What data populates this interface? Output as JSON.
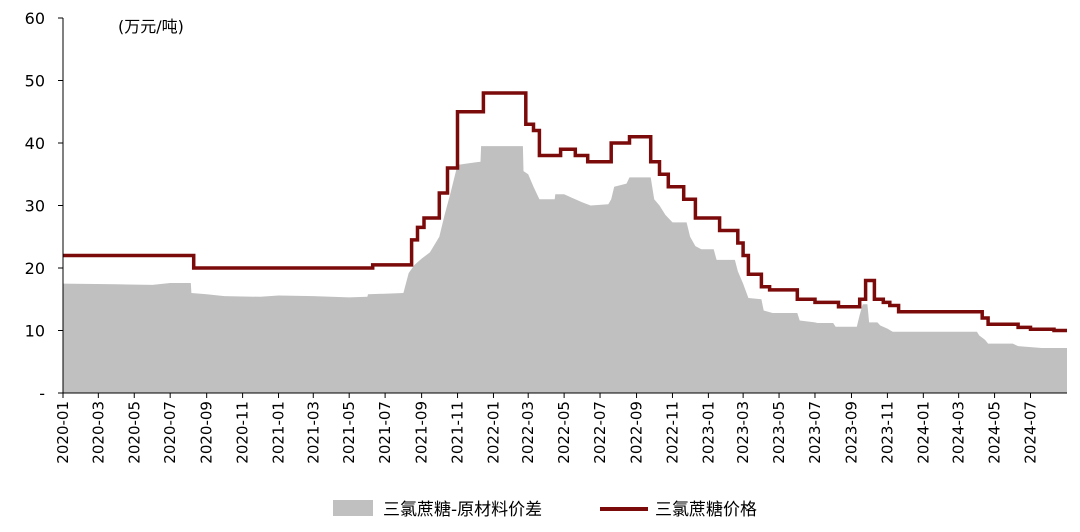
{
  "chart_data": {
    "type": "area",
    "unit_label": "(万元/吨)",
    "y_ticks": [
      "-",
      "10",
      "20",
      "30",
      "40",
      "50",
      "60"
    ],
    "ylim": [
      0,
      60
    ],
    "x_ticks": [
      "2020-01",
      "2020-03",
      "2020-05",
      "2020-07",
      "2020-09",
      "2020-11",
      "2021-01",
      "2021-03",
      "2021-05",
      "2021-07",
      "2021-09",
      "2021-11",
      "2022-01",
      "2022-03",
      "2022-05",
      "2022-07",
      "2022-09",
      "2022-11",
      "2023-01",
      "2023-03",
      "2023-05",
      "2023-07",
      "2023-09",
      "2023-11",
      "2024-01",
      "2024-03",
      "2024-05",
      "2024-07"
    ],
    "xlim": [
      "2020-01-01",
      "2024-09-01"
    ],
    "grid": false,
    "legend_position": "bottom",
    "colors": {
      "spread": "#c0c0c0",
      "price": "#7b0a0a"
    },
    "series": [
      {
        "name": "三氯蔗糖-原材料价差",
        "kind": "area",
        "points": [
          [
            "2020-01-01",
            17.5
          ],
          [
            "2020-04-01",
            17.4
          ],
          [
            "2020-06-01",
            17.3
          ],
          [
            "2020-07-01",
            17.6
          ],
          [
            "2020-08-05",
            17.6
          ],
          [
            "2020-08-06",
            16.0
          ],
          [
            "2020-09-01",
            15.8
          ],
          [
            "2020-10-01",
            15.5
          ],
          [
            "2020-12-01",
            15.4
          ],
          [
            "2021-01-01",
            15.6
          ],
          [
            "2021-03-01",
            15.5
          ],
          [
            "2021-05-01",
            15.3
          ],
          [
            "2021-06-01",
            15.4
          ],
          [
            "2021-06-02",
            15.8
          ],
          [
            "2021-08-01",
            16.0
          ],
          [
            "2021-08-10",
            19.2
          ],
          [
            "2021-08-20",
            20.5
          ],
          [
            "2021-09-01",
            21.5
          ],
          [
            "2021-09-15",
            22.5
          ],
          [
            "2021-10-01",
            25.0
          ],
          [
            "2021-10-10",
            28.5
          ],
          [
            "2021-10-20",
            32.0
          ],
          [
            "2021-11-01",
            36.5
          ],
          [
            "2021-12-01",
            36.9
          ],
          [
            "2021-12-10",
            37.0
          ],
          [
            "2021-12-11",
            39.5
          ],
          [
            "2022-02-20",
            39.5
          ],
          [
            "2022-02-21",
            35.5
          ],
          [
            "2022-03-01",
            35.0
          ],
          [
            "2022-03-10",
            33.0
          ],
          [
            "2022-03-20",
            31.0
          ],
          [
            "2022-04-15",
            31.0
          ],
          [
            "2022-04-16",
            31.8
          ],
          [
            "2022-05-01",
            31.8
          ],
          [
            "2022-05-15",
            31.2
          ],
          [
            "2022-06-01",
            30.5
          ],
          [
            "2022-06-15",
            30.0
          ],
          [
            "2022-07-15",
            30.2
          ],
          [
            "2022-07-20",
            31.0
          ],
          [
            "2022-07-25",
            33.0
          ],
          [
            "2022-08-15",
            33.5
          ],
          [
            "2022-08-20",
            34.5
          ],
          [
            "2022-09-25",
            34.5
          ],
          [
            "2022-10-01",
            31.0
          ],
          [
            "2022-10-10",
            30.0
          ],
          [
            "2022-10-20",
            28.5
          ],
          [
            "2022-11-01",
            27.3
          ],
          [
            "2022-11-25",
            27.3
          ],
          [
            "2022-12-01",
            25.0
          ],
          [
            "2022-12-10",
            23.5
          ],
          [
            "2022-12-20",
            23.0
          ],
          [
            "2023-01-10",
            23.0
          ],
          [
            "2023-01-15",
            21.3
          ],
          [
            "2023-02-15",
            21.3
          ],
          [
            "2023-02-20",
            19.5
          ],
          [
            "2023-03-01",
            17.5
          ],
          [
            "2023-03-10",
            15.2
          ],
          [
            "2023-04-01",
            15.0
          ],
          [
            "2023-04-05",
            13.2
          ],
          [
            "2023-04-20",
            12.8
          ],
          [
            "2023-06-01",
            12.8
          ],
          [
            "2023-06-05",
            11.6
          ],
          [
            "2023-07-01",
            11.3
          ],
          [
            "2023-07-05",
            11.2
          ],
          [
            "2023-08-01",
            11.2
          ],
          [
            "2023-08-05",
            10.6
          ],
          [
            "2023-09-10",
            10.6
          ],
          [
            "2023-09-15",
            12.5
          ],
          [
            "2023-09-20",
            14.2
          ],
          [
            "2023-09-28",
            14.2
          ],
          [
            "2023-10-01",
            11.3
          ],
          [
            "2023-10-15",
            11.3
          ],
          [
            "2023-10-20",
            10.8
          ],
          [
            "2023-11-01",
            10.3
          ],
          [
            "2023-11-10",
            9.8
          ],
          [
            "2024-04-01",
            9.8
          ],
          [
            "2024-04-05",
            9.2
          ],
          [
            "2024-04-15",
            8.5
          ],
          [
            "2024-04-20",
            7.9
          ],
          [
            "2024-06-01",
            7.9
          ],
          [
            "2024-06-10",
            7.5
          ],
          [
            "2024-07-20",
            7.2
          ],
          [
            "2024-09-01",
            7.2
          ]
        ]
      },
      {
        "name": "三氯蔗糖价格",
        "kind": "step-line",
        "points": [
          [
            "2020-01-01",
            22
          ],
          [
            "2020-08-10",
            20
          ],
          [
            "2021-06-10",
            20.5
          ],
          [
            "2021-08-15",
            24.5
          ],
          [
            "2021-08-25",
            26.5
          ],
          [
            "2021-09-05",
            28
          ],
          [
            "2021-10-01",
            32
          ],
          [
            "2021-10-15",
            36
          ],
          [
            "2021-11-01",
            45
          ],
          [
            "2021-12-15",
            48
          ],
          [
            "2022-02-25",
            43
          ],
          [
            "2022-03-10",
            42
          ],
          [
            "2022-03-20",
            38
          ],
          [
            "2022-04-25",
            39
          ],
          [
            "2022-05-20",
            38
          ],
          [
            "2022-06-10",
            37
          ],
          [
            "2022-07-20",
            40
          ],
          [
            "2022-08-20",
            41
          ],
          [
            "2022-09-25",
            37
          ],
          [
            "2022-10-10",
            35
          ],
          [
            "2022-10-25",
            33
          ],
          [
            "2022-11-20",
            31
          ],
          [
            "2022-12-10",
            28
          ],
          [
            "2023-01-20",
            26
          ],
          [
            "2023-02-20",
            24
          ],
          [
            "2023-03-01",
            22
          ],
          [
            "2023-03-10",
            19
          ],
          [
            "2023-04-01",
            17
          ],
          [
            "2023-04-15",
            16.5
          ],
          [
            "2023-06-01",
            15
          ],
          [
            "2023-07-01",
            14.5
          ],
          [
            "2023-08-10",
            13.8
          ],
          [
            "2023-09-15",
            15
          ],
          [
            "2023-09-25",
            18
          ],
          [
            "2023-10-10",
            15
          ],
          [
            "2023-10-25",
            14.5
          ],
          [
            "2023-11-05",
            14
          ],
          [
            "2023-11-20",
            13
          ],
          [
            "2024-04-10",
            12
          ],
          [
            "2024-04-20",
            11
          ],
          [
            "2024-06-10",
            10.5
          ],
          [
            "2024-07-01",
            10.2
          ],
          [
            "2024-08-10",
            10
          ],
          [
            "2024-09-01",
            10
          ]
        ]
      }
    ]
  }
}
